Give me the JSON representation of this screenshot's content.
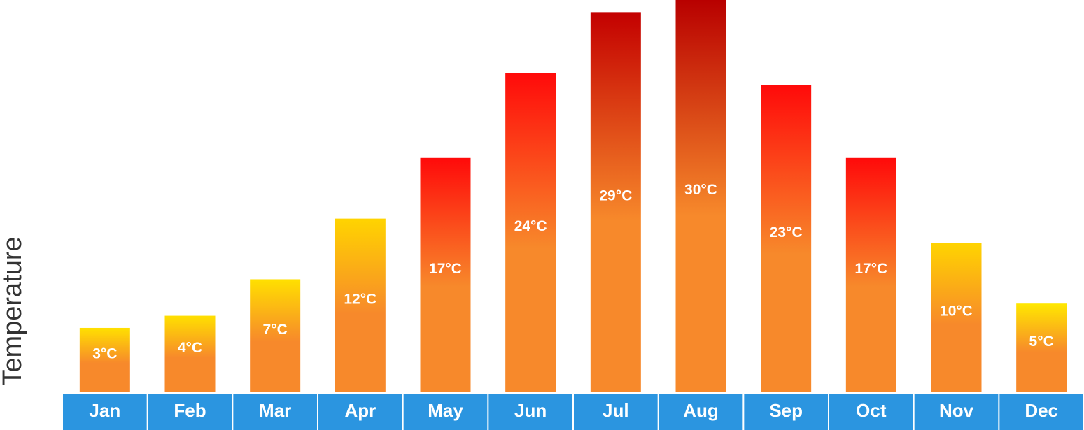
{
  "chart_data": {
    "type": "bar",
    "y_label": "Temperature",
    "categories": [
      "Jan",
      "Feb",
      "Mar",
      "Apr",
      "May",
      "Jun",
      "Jul",
      "Aug",
      "Sep",
      "Oct",
      "Nov",
      "Dec"
    ],
    "values": [
      3,
      4,
      7,
      12,
      17,
      24,
      29,
      30,
      23,
      17,
      10,
      5
    ],
    "value_labels": [
      "3°C",
      "4°C",
      "7°C",
      "12°C",
      "17°C",
      "24°C",
      "29°C",
      "30°C",
      "23°C",
      "17°C",
      "10°C",
      "5°C"
    ],
    "color": "#f7892b",
    "top_colors": [
      "#ffe000",
      "#ffe000",
      "#ffe000",
      "#ffd400",
      "#ff0a0a",
      "#ff0a0a",
      "#c30000",
      "#b80000",
      "#ff0a0a",
      "#ff0a0a",
      "#ffd400",
      "#ffe800"
    ],
    "category_color": "#2b95e0",
    "ylim": [
      -2.3,
      30
    ]
  }
}
